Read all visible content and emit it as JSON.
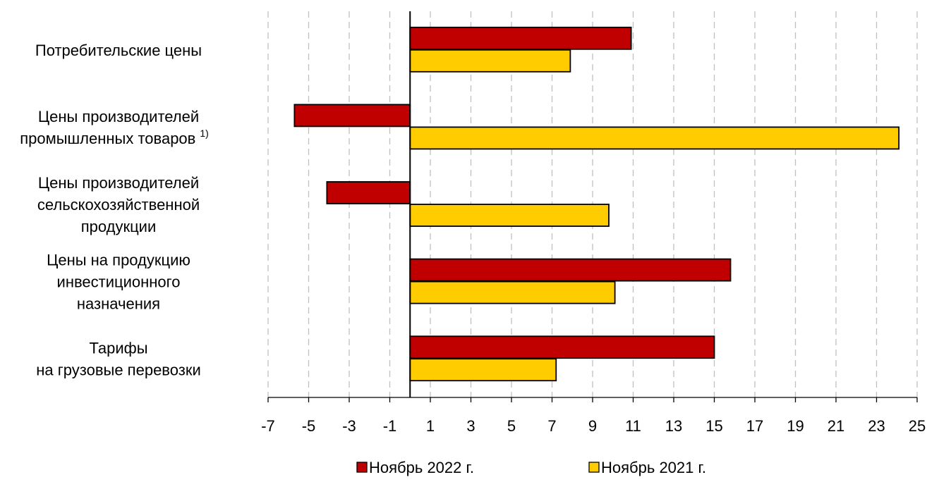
{
  "chart_data": {
    "type": "bar",
    "orientation": "horizontal",
    "categories": [
      [
        "Потребительские цены"
      ],
      [
        "Цены производителей",
        "промышленных товаров"
      ],
      [
        "Цены производителей",
        "сельскохозяйственной",
        "продукции"
      ],
      [
        "Цены на продукцию",
        "инвестиционного",
        "назначения"
      ],
      [
        "Тарифы",
        "на грузовые перевозки"
      ]
    ],
    "category_footnotes": [
      "",
      "1)",
      "",
      "",
      ""
    ],
    "series": [
      {
        "name": "Ноябрь 2022 г.",
        "color": "#c00000",
        "values": [
          10.9,
          -5.7,
          -4.1,
          15.8,
          15.0
        ]
      },
      {
        "name": "Ноябрь 2021 г.",
        "color": "#ffcc00",
        "values": [
          7.9,
          24.1,
          9.8,
          10.1,
          7.2
        ]
      }
    ],
    "xlim": [
      -7,
      25
    ],
    "xticks": [
      -7,
      -5,
      -3,
      -1,
      1,
      3,
      5,
      7,
      9,
      11,
      13,
      15,
      17,
      19,
      21,
      23,
      25
    ],
    "grid": "vertical dashed",
    "legend_position": "bottom"
  }
}
